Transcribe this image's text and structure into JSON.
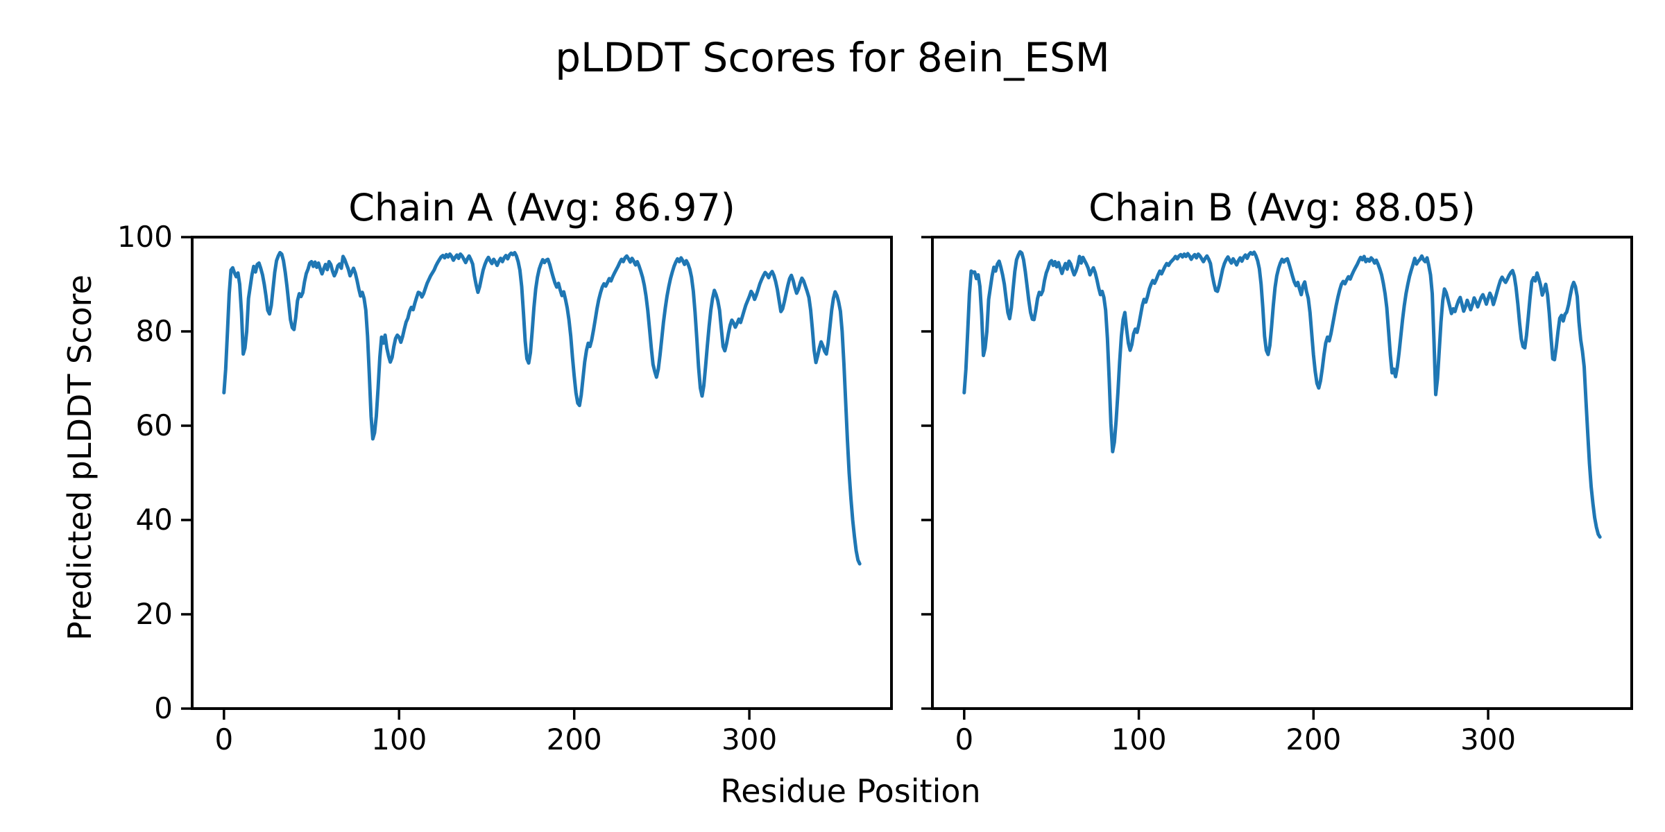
{
  "figure": {
    "suptitle": "pLDDT Scores for 8ein_ESM",
    "xlabel": "Residue Position",
    "ylabel": "Predicted pLDDT Score",
    "line_color": "#1f77b4",
    "axis_color": "#000000",
    "background": "#ffffff"
  },
  "chart_data": [
    {
      "type": "line",
      "title": "Chain A (Avg: 86.97)",
      "chain": "A",
      "avg": 86.97,
      "legend": "none",
      "grid": false,
      "xlim": [
        -18.15,
        381.15
      ],
      "ylim": [
        0,
        100
      ],
      "xticks": [
        0,
        100,
        200,
        300
      ],
      "yticks": [
        0,
        20,
        40,
        60,
        80,
        100
      ],
      "x_start": 0,
      "values": [
        67,
        72,
        80,
        88,
        93,
        93.5,
        92.4,
        91.6,
        92.4,
        90,
        84,
        75.2,
        76.5,
        80,
        87,
        89.5,
        92,
        93.8,
        92.6,
        94.2,
        94.5,
        93.4,
        92,
        90,
        87.5,
        84.5,
        83.7,
        85.5,
        89,
        92.5,
        95,
        96,
        96.7,
        96.4,
        95,
        92.5,
        89.5,
        86,
        82.5,
        80.8,
        80.4,
        83,
        86.5,
        88,
        87.4,
        88.2,
        90.5,
        92.3,
        93.2,
        94.5,
        94.8,
        93.8,
        94.7,
        93.6,
        94.5,
        93.2,
        92.2,
        93.3,
        94.2,
        93.1,
        94.8,
        94.2,
        92.8,
        91.8,
        92.6,
        93.9,
        94.3,
        93.4,
        95.9,
        95.2,
        94.2,
        93.2,
        91.8,
        92.6,
        93.4,
        92.4,
        90.8,
        89,
        87.5,
        88.3,
        87,
        84.5,
        79,
        71,
        62,
        57.2,
        58.5,
        62,
        68,
        74.5,
        78.8,
        77.5,
        79.2,
        76.5,
        74.8,
        73.5,
        74.5,
        76.8,
        78.5,
        79.2,
        78.8,
        77.7,
        78.9,
        80.5,
        82,
        82.8,
        84.3,
        85.1,
        84.6,
        86,
        87.2,
        88.3,
        88.1,
        87.3,
        88,
        89.1,
        90.2,
        91,
        91.8,
        92.4,
        93,
        93.9,
        94.6,
        95.2,
        95.8,
        96.1,
        95.6,
        96.3,
        95.8,
        96.4,
        95.9,
        95.1,
        95.7,
        96.2,
        95.5,
        96.4,
        96,
        95.3,
        94.6,
        95.4,
        96,
        95.2,
        94.3,
        91.8,
        89.9,
        88.3,
        89.5,
        91.3,
        93,
        94.2,
        95.1,
        95.7,
        95,
        94.4,
        95.3,
        94.7,
        94,
        94.9,
        95.5,
        94.8,
        95.6,
        96.1,
        95.4,
        96.2,
        96.6,
        96.3,
        96.7,
        96,
        94.8,
        93,
        89.5,
        84,
        78,
        74.2,
        73.3,
        75.5,
        80,
        85,
        89,
        91.5,
        93.2,
        94.3,
        95.2,
        94.6,
        95.1,
        95.3,
        94.2,
        92.8,
        91.5,
        90.3,
        89.4,
        90.2,
        88.8,
        87.6,
        88.4,
        86.8,
        85,
        82.5,
        79,
        74.5,
        70.5,
        67,
        64.8,
        64.3,
        66.5,
        70,
        73.5,
        76,
        77.5,
        76.8,
        78.2,
        80.3,
        82.5,
        84.8,
        86.7,
        88.2,
        89.4,
        90.1,
        89.6,
        90.4,
        91.2,
        90.7,
        91.6,
        92.4,
        93.1,
        93.8,
        94.6,
        95.3,
        94.8,
        95.6,
        96,
        95.4,
        94.7,
        95.5,
        94.9,
        94.1,
        94.8,
        93.9,
        92.8,
        91.5,
        89.8,
        87.5,
        84.5,
        80.5,
        76.5,
        73,
        71.5,
        70.3,
        72,
        75,
        78.5,
        82,
        85,
        87.5,
        89.5,
        91.2,
        92.6,
        93.8,
        94.7,
        95.4,
        94.8,
        95.6,
        95,
        94.2,
        95,
        94.3,
        93.2,
        91.5,
        88.5,
        84,
        78.5,
        72.5,
        68,
        66.3,
        68.5,
        72.5,
        77,
        81,
        84.5,
        87,
        88.7,
        87.8,
        86.5,
        84.5,
        80.5,
        76.8,
        75.9,
        77.4,
        79.5,
        81.3,
        82.4,
        81.8,
        80.9,
        81.7,
        82.6,
        81.9,
        83.1,
        84.4,
        85.6,
        86.5,
        87.4,
        88.5,
        87.9,
        86.8,
        87.7,
        88.9,
        90.1,
        91,
        91.8,
        92.5,
        92.1,
        91.4,
        92.2,
        92.7,
        91.9,
        90.6,
        88.9,
        86.5,
        84.2,
        84.8,
        86.3,
        88.1,
        89.8,
        91.2,
        91.9,
        90.8,
        89.3,
        88.1,
        88.9,
        90.3,
        91.3,
        90.7,
        89.6,
        88.5,
        87.2,
        84.5,
        80.5,
        76,
        73.4,
        74.8,
        76.5,
        77.8,
        76.9,
        75.8,
        75.2,
        77.5,
        81,
        84.5,
        87,
        88.4,
        87.6,
        86.2,
        84.3,
        80,
        73,
        65,
        57,
        50,
        44.5,
        40,
        36.5,
        33.5,
        31.5,
        30.7
      ]
    },
    {
      "type": "line",
      "title": "Chain B (Avg: 88.05)",
      "chain": "B",
      "avg": 88.05,
      "legend": "none",
      "grid": false,
      "xlim": [
        -18.2,
        382.2
      ],
      "ylim": [
        0,
        100
      ],
      "xticks": [
        0,
        100,
        200,
        300
      ],
      "yticks": [
        0,
        20,
        40,
        60,
        80,
        100
      ],
      "x_start": 0,
      "values": [
        67,
        72,
        80,
        88,
        92.8,
        92.5,
        92.6,
        91.2,
        92,
        89.5,
        83.5,
        74.9,
        76.5,
        80,
        86.8,
        89.3,
        91.8,
        93.6,
        92.8,
        94.3,
        94.9,
        93.6,
        92,
        90,
        87,
        84,
        82.7,
        85,
        89,
        92.7,
        95.2,
        96.2,
        96.9,
        96.6,
        95.2,
        92.7,
        89.7,
        86.5,
        84,
        82.6,
        82.5,
        84.5,
        87,
        88.3,
        87.8,
        88.6,
        90.8,
        92.4,
        93.4,
        94.6,
        95,
        94,
        94.8,
        93.7,
        94.6,
        93.4,
        92.3,
        93.5,
        94.4,
        93.2,
        94.9,
        94.3,
        93,
        92,
        92.8,
        94,
        95.9,
        94.5,
        95.7,
        95,
        94.3,
        93.4,
        92,
        92.8,
        93.5,
        92.5,
        91,
        89.2,
        87.8,
        88.5,
        87.2,
        84.5,
        78.5,
        70,
        60.5,
        54.5,
        56.5,
        61,
        67,
        73.5,
        79,
        82.5,
        84,
        80.5,
        77.5,
        76,
        77.2,
        79.5,
        80.5,
        79.8,
        81.5,
        83.5,
        85.5,
        86.8,
        86.2,
        87.5,
        89,
        90,
        90.8,
        90.2,
        91,
        92,
        92.8,
        92.2,
        93,
        93.8,
        94.4,
        94,
        94.6,
        95,
        95.4,
        95.9,
        95.4,
        96,
        96.3,
        95.8,
        96.4,
        95.9,
        96.5,
        96,
        95.3,
        95.9,
        96.3,
        95.6,
        96.4,
        96,
        95.4,
        94.8,
        95.5,
        96,
        95.3,
        94.4,
        92,
        90.2,
        88.7,
        88.5,
        89.8,
        91.5,
        93.2,
        94.4,
        95.2,
        95.8,
        95.1,
        94.5,
        95.4,
        94.8,
        94.1,
        95,
        95.6,
        94.9,
        95.7,
        96.2,
        95.5,
        96.3,
        96.7,
        96.4,
        96.8,
        96.1,
        95,
        93.3,
        90,
        85,
        79,
        76,
        75.1,
        77,
        81,
        85.5,
        89.3,
        91.8,
        93.4,
        94.5,
        95.3,
        94.7,
        95.2,
        95.4,
        94.3,
        93,
        91.7,
        90.5,
        89.7,
        90.4,
        89,
        87.8,
        89.7,
        90.5,
        88.5,
        87,
        84,
        79.5,
        75,
        71.5,
        69,
        68,
        69.5,
        72,
        75,
        77.5,
        78.8,
        78,
        79.5,
        81.5,
        83.5,
        85.5,
        87.3,
        88.8,
        90,
        90.6,
        90.1,
        90.9,
        91.6,
        91.1,
        92,
        92.8,
        93.5,
        94.2,
        95,
        95.7,
        95.2,
        95.9,
        94.8,
        95.3,
        94.9,
        95.6,
        95.2,
        94.5,
        95.1,
        94.2,
        93.2,
        92,
        90.2,
        88,
        85,
        80,
        75,
        71.2,
        72,
        70.4,
        72.5,
        75.5,
        79,
        82.5,
        85.5,
        88,
        90,
        91.7,
        93,
        94.2,
        95.5,
        94.3,
        94.9,
        95.3,
        96,
        95.2,
        94.8,
        95.6,
        94,
        92,
        88,
        78,
        66.6,
        70,
        76,
        82,
        86.5,
        89,
        88.2,
        86.8,
        85.3,
        83.8,
        84.8,
        84.2,
        85.4,
        86.5,
        87.2,
        85.8,
        84.3,
        85.2,
        86.6,
        85.6,
        84.6,
        85.7,
        87.1,
        86.3,
        85.2,
        86.2,
        87.2,
        87.8,
        86.9,
        85.8,
        87,
        88.1,
        87.3,
        85.7,
        86.9,
        88.3,
        89.6,
        90.8,
        91.5,
        90.9,
        90.4,
        91.1,
        91.9,
        92.5,
        92.9,
        91.7,
        89.3,
        85.8,
        81.8,
        78.4,
        76.8,
        76.5,
        79.2,
        83.2,
        87.2,
        90.6,
        91.4,
        90.7,
        92.4,
        91.2,
        89.8,
        87.7,
        88.7,
        90,
        87.8,
        83.8,
        78.8,
        74.2,
        74,
        76.6,
        80,
        82.8,
        83.4,
        82.2,
        83.6,
        84.1,
        85.6,
        87.6,
        89.4,
        90.4,
        89.5,
        87.4,
        82,
        78.2,
        75.8,
        72.5,
        65.5,
        58.5,
        52,
        47,
        43.5,
        40.5,
        38.5,
        37,
        36.4
      ]
    }
  ]
}
